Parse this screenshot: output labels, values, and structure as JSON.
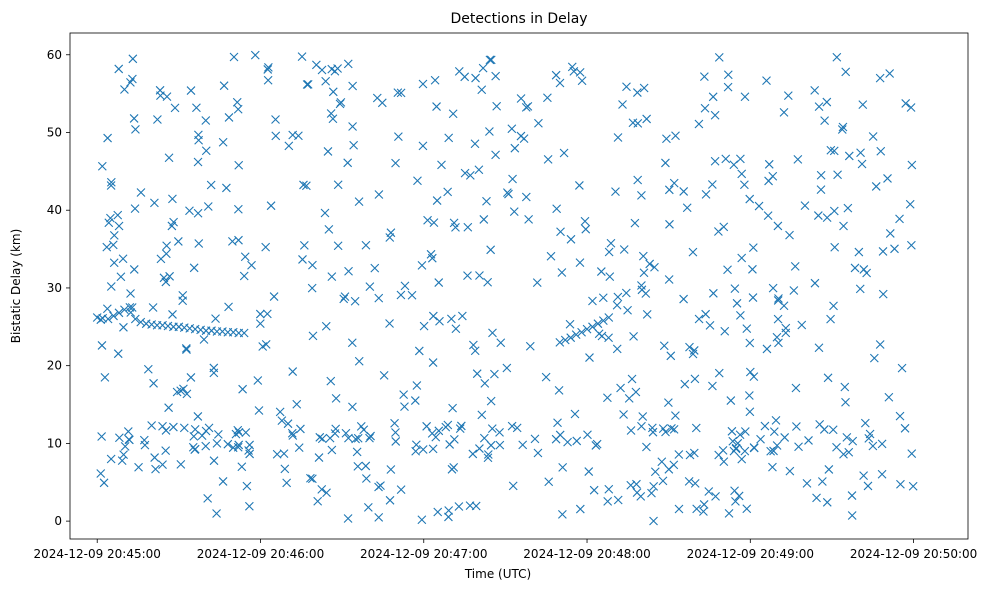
{
  "chart_data": {
    "type": "scatter",
    "title": "Detections in Delay",
    "xlabel": "Time (UTC)",
    "ylabel": "Bistatic Delay (km)",
    "marker": "x",
    "color": "#1f77b4",
    "grid": false,
    "legend": "none",
    "x_unit": "UTC time",
    "xlim": [
      "2024-12-09 20:44:50",
      "2024-12-09 20:50:20"
    ],
    "ylim": [
      -2.3,
      62.8
    ],
    "x_ticks": [
      "2024-12-09 20:45:00",
      "2024-12-09 20:46:00",
      "2024-12-09 20:47:00",
      "2024-12-09 20:48:00",
      "2024-12-09 20:49:00",
      "2024-12-09 20:50:00"
    ],
    "y_ticks": [
      "0",
      "10",
      "20",
      "30",
      "40",
      "50",
      "60"
    ],
    "y_tick_values": [
      0,
      10,
      20,
      30,
      40,
      50,
      60
    ],
    "track_points": [
      {
        "x": "20:45:00",
        "y": 26.2
      },
      {
        "x": "20:45:02",
        "y": 26.1
      },
      {
        "x": "20:45:04",
        "y": 26.0
      },
      {
        "x": "20:45:06",
        "y": 26.4
      },
      {
        "x": "20:45:08",
        "y": 26.8
      },
      {
        "x": "20:45:10",
        "y": 27.2
      },
      {
        "x": "20:45:12",
        "y": 27.5
      },
      {
        "x": "20:45:14",
        "y": 26.0
      },
      {
        "x": "20:45:16",
        "y": 25.6
      },
      {
        "x": "20:45:18",
        "y": 25.4
      },
      {
        "x": "20:45:20",
        "y": 25.3
      },
      {
        "x": "20:45:22",
        "y": 25.2
      },
      {
        "x": "20:45:24",
        "y": 25.2
      },
      {
        "x": "20:45:26",
        "y": 25.1
      },
      {
        "x": "20:45:28",
        "y": 25.0
      },
      {
        "x": "20:45:30",
        "y": 25.0
      },
      {
        "x": "20:45:32",
        "y": 24.9
      },
      {
        "x": "20:45:34",
        "y": 24.8
      },
      {
        "x": "20:45:36",
        "y": 24.7
      },
      {
        "x": "20:45:38",
        "y": 24.6
      },
      {
        "x": "20:45:40",
        "y": 24.5
      },
      {
        "x": "20:45:42",
        "y": 24.5
      },
      {
        "x": "20:45:44",
        "y": 24.4
      },
      {
        "x": "20:45:46",
        "y": 24.4
      },
      {
        "x": "20:45:48",
        "y": 24.3
      },
      {
        "x": "20:45:50",
        "y": 24.3
      },
      {
        "x": "20:45:52",
        "y": 24.2
      },
      {
        "x": "20:45:54",
        "y": 24.2
      },
      {
        "x": "20:47:50",
        "y": 23.0
      },
      {
        "x": "20:47:52",
        "y": 23.3
      },
      {
        "x": "20:47:54",
        "y": 23.6
      },
      {
        "x": "20:47:56",
        "y": 24.0
      },
      {
        "x": "20:47:58",
        "y": 24.3
      },
      {
        "x": "20:48:00",
        "y": 24.7
      },
      {
        "x": "20:48:02",
        "y": 25.0
      },
      {
        "x": "20:48:04",
        "y": 25.4
      },
      {
        "x": "20:48:06",
        "y": 25.8
      },
      {
        "x": "20:48:08",
        "y": 26.2
      },
      {
        "x": "20:45:20",
        "y": 12.3
      },
      {
        "x": "20:45:24",
        "y": 12.2
      },
      {
        "x": "20:45:28",
        "y": 12.1
      },
      {
        "x": "20:45:32",
        "y": 12.0
      },
      {
        "x": "20:45:36",
        "y": 11.8
      },
      {
        "x": "20:45:40",
        "y": 11.6
      },
      {
        "x": "20:45:44",
        "y": 10.0
      },
      {
        "x": "20:45:48",
        "y": 9.9
      },
      {
        "x": "20:45:52",
        "y": 9.8
      },
      {
        "x": "20:45:56",
        "y": 9.8
      },
      {
        "x": "20:48:20",
        "y": 12.2
      },
      {
        "x": "20:48:24",
        "y": 12.0
      },
      {
        "x": "20:48:28",
        "y": 11.9
      },
      {
        "x": "20:48:32",
        "y": 11.8
      },
      {
        "x": "20:48:50",
        "y": 9.1
      },
      {
        "x": "20:48:54",
        "y": 9.0
      },
      {
        "x": "20:48:58",
        "y": 9.0
      }
    ]
  }
}
